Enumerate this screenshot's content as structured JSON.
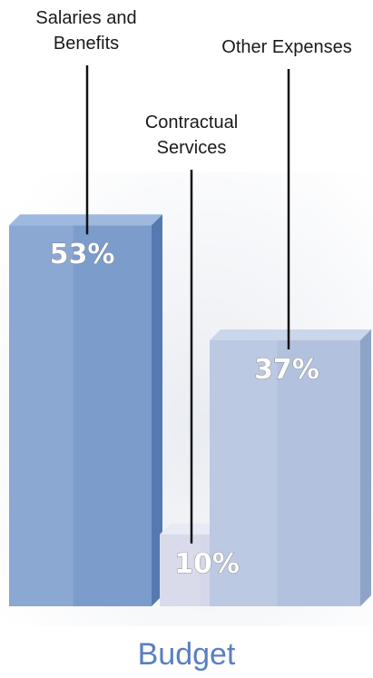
{
  "chart_data": {
    "type": "bar",
    "style": "3d",
    "title": "Budget",
    "categories": [
      "Salaries and Benefits",
      "Contractual Services",
      "Other Expenses"
    ],
    "category_label_lines": [
      [
        "Salaries and",
        "Benefits"
      ],
      [
        "Contractual",
        "Services"
      ],
      [
        "Other Expenses"
      ]
    ],
    "values": [
      53,
      10,
      37
    ],
    "value_labels": [
      "53%",
      "10%",
      "37%"
    ],
    "unit": "%",
    "colors": {
      "front": [
        "#7c9ccc",
        "#d4d7e9",
        "#b2c2de"
      ],
      "side": [
        "#5579b1",
        "#a8acc8",
        "#8ea3c8"
      ],
      "top": [
        "#9fb8de",
        "#e8eaf4",
        "#cad6ea"
      ],
      "title": "#5a7fc0"
    },
    "grid": false,
    "legend": "none"
  }
}
